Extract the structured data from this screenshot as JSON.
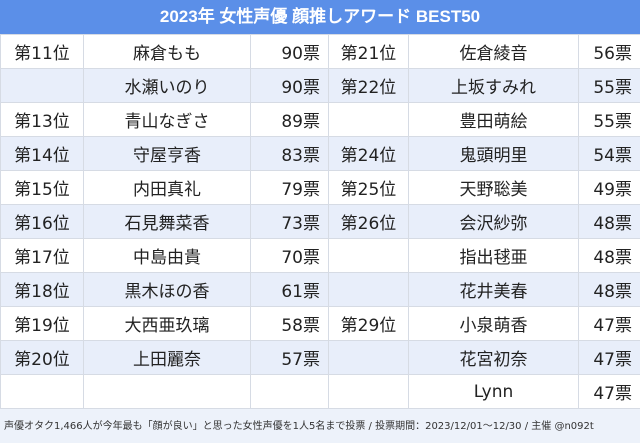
{
  "title": "2023年 女性声優 顔推しアワード BEST50",
  "rows": [
    {
      "r1": "第11位",
      "n1": "麻倉もも",
      "v1": "90票",
      "r2": "第21位",
      "n2": "佐倉綾音",
      "v2": "56票"
    },
    {
      "r1": "",
      "n1": "水瀬いのり",
      "v1": "90票",
      "r2": "第22位",
      "n2": "上坂すみれ",
      "v2": "55票"
    },
    {
      "r1": "第13位",
      "n1": "青山なぎさ",
      "v1": "89票",
      "r2": "",
      "n2": "豊田萌絵",
      "v2": "55票"
    },
    {
      "r1": "第14位",
      "n1": "守屋亨香",
      "v1": "83票",
      "r2": "第24位",
      "n2": "鬼頭明里",
      "v2": "54票"
    },
    {
      "r1": "第15位",
      "n1": "内田真礼",
      "v1": "79票",
      "r2": "第25位",
      "n2": "天野聡美",
      "v2": "49票"
    },
    {
      "r1": "第16位",
      "n1": "石見舞菜香",
      "v1": "73票",
      "r2": "第26位",
      "n2": "会沢紗弥",
      "v2": "48票"
    },
    {
      "r1": "第17位",
      "n1": "中島由貴",
      "v1": "70票",
      "r2": "",
      "n2": "指出毬亜",
      "v2": "48票"
    },
    {
      "r1": "第18位",
      "n1": "黒木ほの香",
      "v1": "61票",
      "r2": "",
      "n2": "花井美春",
      "v2": "48票"
    },
    {
      "r1": "第19位",
      "n1": "大西亜玖璃",
      "v1": "58票",
      "r2": "第29位",
      "n2": "小泉萌香",
      "v2": "47票"
    },
    {
      "r1": "第20位",
      "n1": "上田麗奈",
      "v1": "57票",
      "r2": "",
      "n2": "花宮初奈",
      "v2": "47票"
    },
    {
      "r1": "",
      "n1": "",
      "v1": "",
      "r2": "",
      "n2": "Lynn",
      "v2": "47票"
    }
  ],
  "footer": "声優オタク1,466人が今年最も「顔が良い」と思った女性声優を1人5名まで投票 / 投票期間：2023/12/01～12/30 / 主催 @n092t"
}
